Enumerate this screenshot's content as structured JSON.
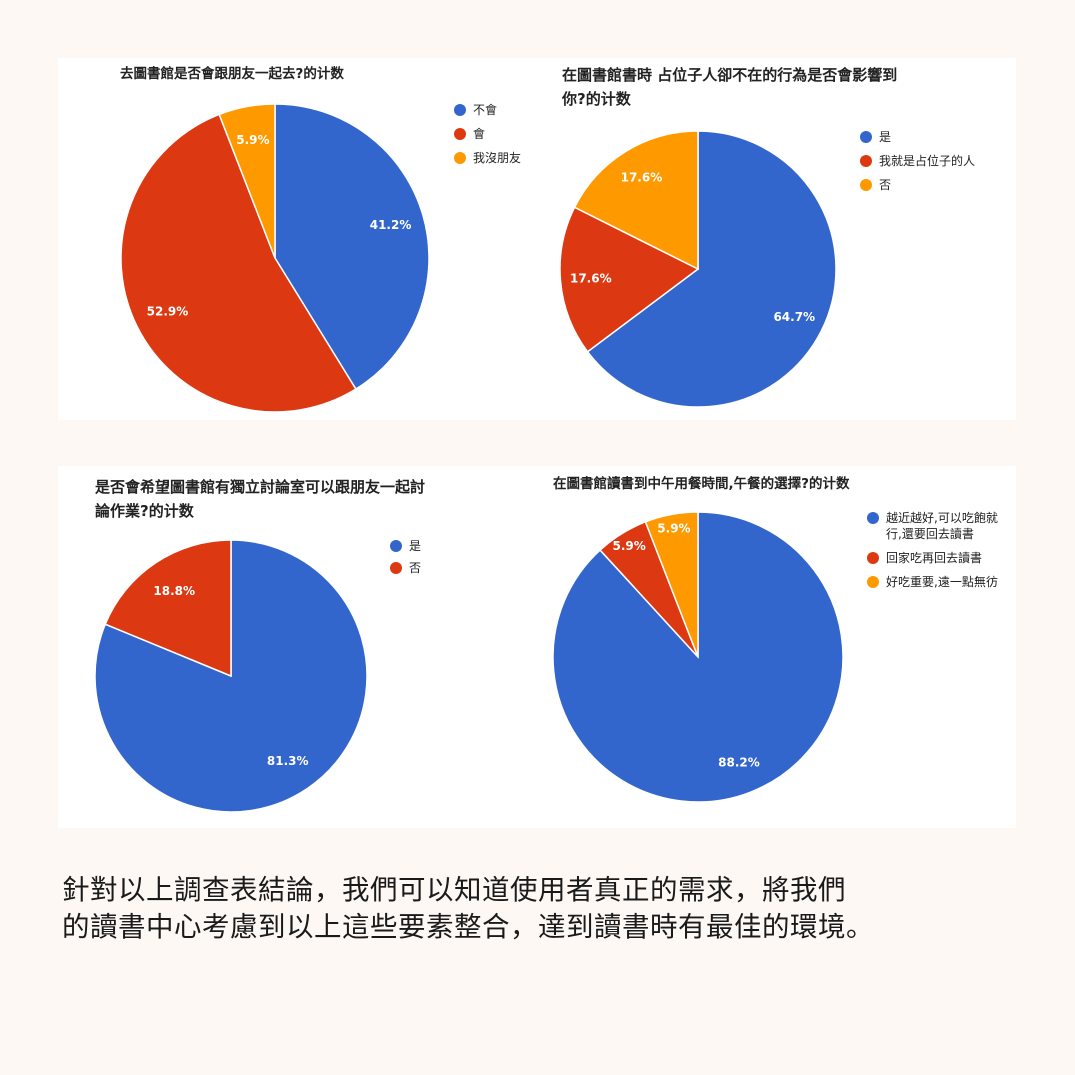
{
  "colors": {
    "blue": "#3366cc",
    "red": "#dc3912",
    "orange": "#ff9900",
    "background": "#fdf8f3"
  },
  "chart_data": [
    {
      "type": "pie",
      "title_lines": [
        "去圖書館是否會跟朋友一起去?的计数"
      ],
      "labels": [
        "不會",
        "會",
        "我沒朋友"
      ],
      "legend_lines": [
        [
          "不會"
        ],
        [
          "會"
        ],
        [
          "我沒朋友"
        ]
      ],
      "values": [
        41.2,
        52.9,
        5.9
      ],
      "data_labels": [
        "41.2%",
        "52.9%",
        "5.9%"
      ],
      "colors": [
        "#3366cc",
        "#dc3912",
        "#ff9900"
      ],
      "legend": "right"
    },
    {
      "type": "pie",
      "title_lines": [
        "在圖書館書時 占位子人卻不在的行為是否會影響到",
        "你?的计数"
      ],
      "labels": [
        "是",
        "我就是占位子的人",
        "否"
      ],
      "legend_lines": [
        [
          "是"
        ],
        [
          "我就是占位子的人"
        ],
        [
          "否"
        ]
      ],
      "values": [
        64.7,
        17.6,
        17.6
      ],
      "data_labels": [
        "64.7%",
        "17.6%",
        "17.6%"
      ],
      "colors": [
        "#3366cc",
        "#dc3912",
        "#ff9900"
      ],
      "legend": "right"
    },
    {
      "type": "pie",
      "title_lines": [
        "是否會希望圖書館有獨立討論室可以跟朋友一起討",
        "論作業?的计数"
      ],
      "labels": [
        "是",
        "否"
      ],
      "legend_lines": [
        [
          "是"
        ],
        [
          "否"
        ]
      ],
      "values": [
        81.3,
        18.8
      ],
      "data_labels": [
        "81.3%",
        "18.8%"
      ],
      "colors": [
        "#3366cc",
        "#dc3912"
      ],
      "legend": "right"
    },
    {
      "type": "pie",
      "title_lines": [
        "在圖書館讀書到中午用餐時間,午餐的選擇?的计数"
      ],
      "labels": [
        "越近越好,可以吃飽就行,還要回去讀書",
        "回家吃再回去讀書",
        "好吃重要,遠一點無彷"
      ],
      "legend_lines": [
        [
          "越近越好,可以吃飽就",
          "行,還要回去讀書"
        ],
        [
          "回家吃再回去讀書"
        ],
        [
          "好吃重要,遠一點無彷"
        ]
      ],
      "values": [
        88.2,
        5.9,
        5.9
      ],
      "data_labels": [
        "88.2%",
        "5.9%",
        "5.9%"
      ],
      "colors": [
        "#3366cc",
        "#dc3912",
        "#ff9900"
      ],
      "legend": "right"
    }
  ],
  "conclusion": {
    "line1": "針對以上調查表結論，我們可以知道使用者真正的需求，將我們",
    "line2": "的讀書中心考慮到以上這些要素整合，達到讀書時有最佳的環境。"
  }
}
